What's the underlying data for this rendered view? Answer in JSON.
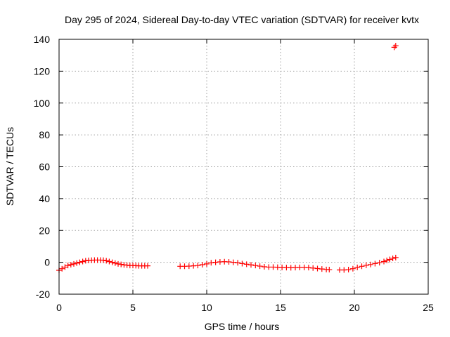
{
  "chart_data": {
    "type": "scatter",
    "title": "Day 295 of 2024, Sidereal Day-to-day VTEC variation (SDTVAR) for receiver kvtx",
    "xlabel": "GPS time / hours",
    "ylabel": "SDTVAR / TECUs",
    "xlim": [
      0,
      25
    ],
    "ylim": [
      -20,
      140
    ],
    "xticks": [
      0,
      5,
      10,
      15,
      20,
      25
    ],
    "yticks": [
      -20,
      0,
      20,
      40,
      60,
      80,
      100,
      120,
      140
    ],
    "grid": true,
    "marker": "plus",
    "color": "#ff0000",
    "segments": [
      {
        "x": [
          0.0,
          0.2,
          0.4,
          0.6,
          0.8,
          1.0,
          1.2,
          1.4,
          1.6,
          1.8,
          2.0,
          2.2,
          2.4,
          2.6,
          2.8,
          3.0,
          3.2,
          3.4,
          3.6,
          3.8,
          4.0,
          4.2,
          4.4,
          4.6,
          4.8,
          5.0,
          5.2,
          5.4,
          5.6,
          5.8,
          6.0
        ],
        "y": [
          -5.0,
          -4.0,
          -3.0,
          -2.0,
          -1.5,
          -1.0,
          -0.5,
          0.0,
          0.5,
          1.0,
          1.2,
          1.3,
          1.4,
          1.4,
          1.4,
          1.3,
          1.0,
          0.5,
          0.0,
          -0.5,
          -1.0,
          -1.3,
          -1.6,
          -1.8,
          -2.0,
          -2.0,
          -2.1,
          -2.2,
          -2.2,
          -2.2,
          -2.2
        ]
      },
      {
        "x": [
          8.2,
          8.5,
          8.8,
          9.1,
          9.4,
          9.7,
          10.0,
          10.3,
          10.6,
          10.9,
          11.2,
          11.5,
          11.8,
          12.1,
          12.4,
          12.7,
          13.0,
          13.3,
          13.6,
          13.9,
          14.2,
          14.5,
          14.8,
          15.1,
          15.4,
          15.7,
          16.0,
          16.3,
          16.6,
          16.9,
          17.2,
          17.5,
          17.8,
          18.1,
          18.3
        ],
        "y": [
          -2.5,
          -2.5,
          -2.4,
          -2.2,
          -2.0,
          -1.5,
          -1.0,
          -0.3,
          0.0,
          0.3,
          0.4,
          0.3,
          0.0,
          -0.3,
          -0.8,
          -1.2,
          -1.6,
          -2.0,
          -2.4,
          -2.8,
          -3.0,
          -3.0,
          -3.1,
          -3.2,
          -3.3,
          -3.4,
          -3.3,
          -3.2,
          -3.2,
          -3.3,
          -3.6,
          -3.9,
          -4.2,
          -4.5,
          -4.6
        ]
      },
      {
        "x": [
          19.0,
          19.3,
          19.6,
          19.9,
          20.2,
          20.5,
          20.8,
          21.1,
          21.4,
          21.7,
          22.0,
          22.2,
          22.4,
          22.6,
          22.8
        ],
        "y": [
          -4.8,
          -4.8,
          -4.6,
          -4.0,
          -3.2,
          -2.5,
          -1.9,
          -1.4,
          -0.8,
          -0.2,
          0.5,
          1.2,
          1.8,
          2.5,
          3.0
        ]
      },
      {
        "x": [
          22.7,
          22.8
        ],
        "y": [
          135.0,
          136.0
        ]
      }
    ]
  }
}
